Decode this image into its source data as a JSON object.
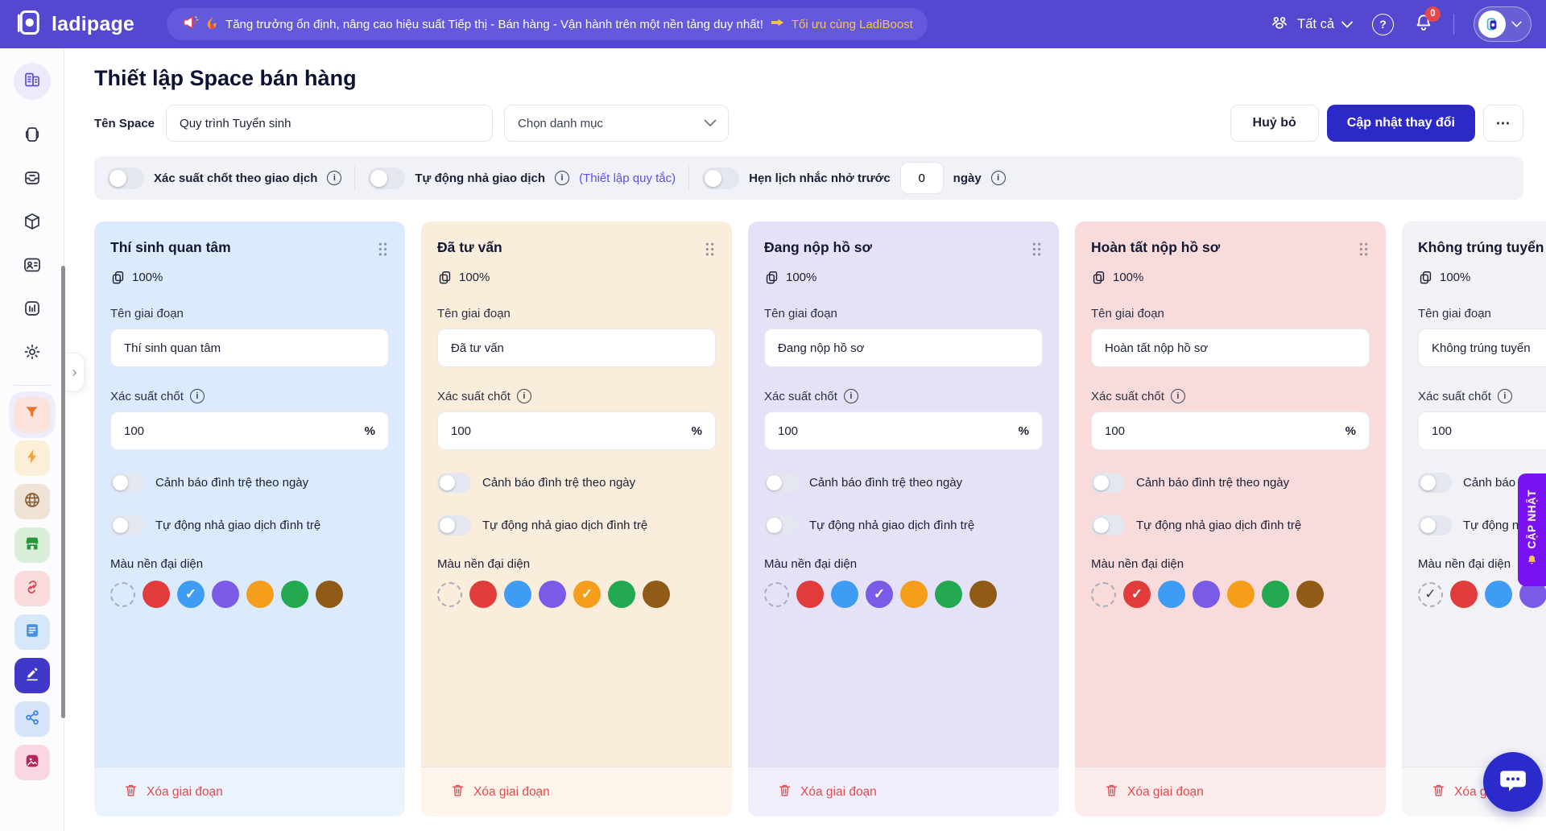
{
  "topbar": {
    "logo_text": "ladipage",
    "banner": {
      "megaphone_icon": "megaphone-icon",
      "flame_icon": "flame-icon",
      "text": "Tăng trưởng ổn định, nâng cao hiệu suất Tiếp thị - Bán hàng - Vận hành trên một nền tảng duy nhất!",
      "pointer_icon": "pointing-hand-icon",
      "link_text": "Tối ưu cùng LadiBoost"
    },
    "workspace_selector": {
      "label": "Tất cả"
    },
    "notification_badge": "0"
  },
  "sidebar": {
    "top_items": [
      {
        "id": "company",
        "active": true
      },
      {
        "id": "wallet",
        "active": false
      },
      {
        "id": "inbox",
        "active": false
      },
      {
        "id": "package",
        "active": false
      },
      {
        "id": "contacts",
        "active": false
      },
      {
        "id": "reports",
        "active": false
      },
      {
        "id": "settings",
        "active": false
      }
    ],
    "bottom_items": [
      {
        "id": "funnel",
        "fg": "#E8732A",
        "bg": "#FBE3DB",
        "active": true
      },
      {
        "id": "bolt",
        "fg": "#F2A33C",
        "bg": "#FCEFD7",
        "active": false
      },
      {
        "id": "globe",
        "fg": "#8A6138",
        "bg": "#EFE3D5",
        "active": false
      },
      {
        "id": "store",
        "fg": "#27963C",
        "bg": "#D9EFD9",
        "active": false
      },
      {
        "id": "link",
        "fg": "#D9434F",
        "bg": "#FADBDB",
        "active": false
      },
      {
        "id": "document",
        "fg": "#4A90E2",
        "bg": "#D6E7FA",
        "active": false
      },
      {
        "id": "edit",
        "fg": "#FFFFFF",
        "bg": "#4038C8",
        "active": false
      },
      {
        "id": "share",
        "fg": "#3E7BE8",
        "bg": "#D6E4FA",
        "active": false
      },
      {
        "id": "image",
        "fg": "#B3265E",
        "bg": "#F8D7E0",
        "active": false
      }
    ]
  },
  "page": {
    "title": "Thiết lập Space bán hàng",
    "space_name_label": "Tên Space",
    "space_name_value": "Quy trình Tuyển sinh",
    "category_placeholder": "Chọn danh mục",
    "cancel_label": "Huỷ bỏ",
    "submit_label": "Cập nhật thay đổi",
    "more_label": "⋯"
  },
  "settings_bar": {
    "probability_toggle_label": "Xác suất chốt theo giao dịch",
    "auto_release_toggle_label": "Tự động nhả giao dịch",
    "auto_release_link": "(Thiết lập quy tắc)",
    "reminder_toggle_label": "Hẹn lịch nhắc nhở trước",
    "reminder_days_value": "0",
    "reminder_days_unit": "ngày"
  },
  "stage_card_labels": {
    "name_label": "Tên giai đoạn",
    "probability_label": "Xác suất chốt",
    "probability_unit": "%",
    "stall_warning_toggle": "Cảnh báo đình trệ theo ngày",
    "auto_release_toggle": "Tự động nhả giao dịch đình trệ",
    "color_label": "Màu nền đại diện",
    "delete_label": "Xóa giai đoạn"
  },
  "palette": [
    {
      "id": "none",
      "hex": "transparent"
    },
    {
      "id": "red",
      "hex": "#E23B3B"
    },
    {
      "id": "blue",
      "hex": "#3E9CF5"
    },
    {
      "id": "purple",
      "hex": "#7A5BE8"
    },
    {
      "id": "orange",
      "hex": "#F59E1B"
    },
    {
      "id": "green",
      "hex": "#23A94F"
    },
    {
      "id": "brown",
      "hex": "#8F5B16"
    }
  ],
  "columns": [
    {
      "name": "Thí sinh quan tâm",
      "percent": "100%",
      "probability": "100",
      "bg": "#DBEAFC",
      "selected": "blue"
    },
    {
      "name": "Đã tư vấn",
      "percent": "100%",
      "probability": "100",
      "bg": "#FBEDDB",
      "selected": "orange"
    },
    {
      "name": "Đang nộp hồ sơ",
      "percent": "100%",
      "probability": "100",
      "bg": "#E5E2F8",
      "selected": "purple"
    },
    {
      "name": "Hoàn tất nộp hồ sơ",
      "percent": "100%",
      "probability": "100",
      "bg": "#F9DBDB",
      "selected": "red"
    },
    {
      "name": "Không trúng tuyển",
      "percent": "100%",
      "probability": "100",
      "bg": "#F1F1F6",
      "selected": "none"
    }
  ],
  "ribbon": {
    "text": "CẬP NHẬT",
    "bell_icon": "bell-icon",
    "color": "#7A12F4"
  },
  "colors": {
    "topbar": "#5348CF",
    "banner_pill": "#6459DC",
    "banner_link": "#F7C64B",
    "primary_button": "#2D28C8",
    "link": "#5B51E8",
    "danger": "#E5484D",
    "chat_fab": "#2B2BCB",
    "ribbon": "#7A12F4"
  }
}
